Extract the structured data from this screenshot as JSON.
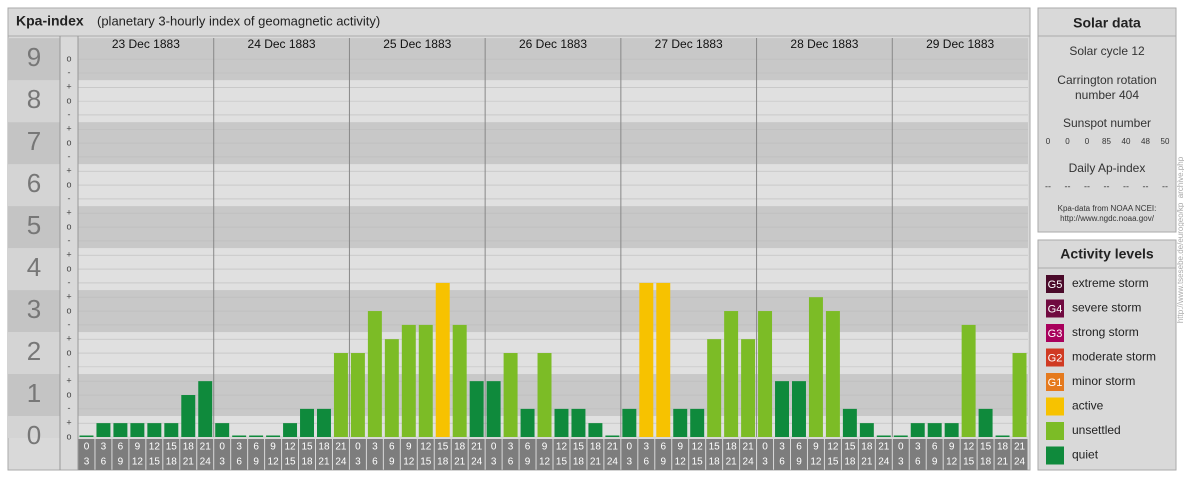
{
  "chart_data": {
    "type": "bar",
    "title": "Kpa-index",
    "subtitle": "(planetary 3-hourly index of geomagnetic activity)",
    "days": [
      "23 Dec 1883",
      "24 Dec 1883",
      "25 Dec 1883",
      "26 Dec 1883",
      "27 Dec 1883",
      "28 Dec 1883",
      "29 Dec 1883"
    ],
    "time_labels": [
      [
        "0",
        "3"
      ],
      [
        "3",
        "6"
      ],
      [
        "6",
        "9"
      ],
      [
        "9",
        "12"
      ],
      [
        "12",
        "15"
      ],
      [
        "15",
        "18"
      ],
      [
        "18",
        "21"
      ],
      [
        "21",
        "24"
      ]
    ],
    "values": [
      [
        0,
        0.33,
        0.33,
        0.33,
        0.33,
        0.33,
        1,
        1.33
      ],
      [
        0.33,
        0,
        0,
        0,
        0.33,
        0.67,
        0.67,
        2
      ],
      [
        2,
        3,
        2.33,
        2.67,
        2.67,
        3.67,
        2.67,
        1.33
      ],
      [
        1.33,
        2,
        0.67,
        2,
        0.67,
        0.67,
        0.33,
        0
      ],
      [
        0.67,
        3.67,
        3.67,
        0.67,
        0.67,
        2.33,
        3,
        2.33
      ],
      [
        3,
        1.33,
        1.33,
        3.33,
        3,
        0.67,
        0.33,
        0
      ],
      [
        0,
        0.33,
        0.33,
        0.33,
        2.67,
        0.67,
        0,
        2
      ]
    ],
    "colors": [
      [
        "#0f8a3c",
        "#0f8a3c",
        "#0f8a3c",
        "#0f8a3c",
        "#0f8a3c",
        "#0f8a3c",
        "#0f8a3c",
        "#0f8a3c"
      ],
      [
        "#0f8a3c",
        "#0f8a3c",
        "#0f8a3c",
        "#0f8a3c",
        "#0f8a3c",
        "#0f8a3c",
        "#0f8a3c",
        "#7cbc26"
      ],
      [
        "#7cbc26",
        "#7cbc26",
        "#7cbc26",
        "#7cbc26",
        "#7cbc26",
        "#f7c200",
        "#7cbc26",
        "#0f8a3c"
      ],
      [
        "#0f8a3c",
        "#7cbc26",
        "#0f8a3c",
        "#7cbc26",
        "#0f8a3c",
        "#0f8a3c",
        "#0f8a3c",
        "#0f8a3c"
      ],
      [
        "#0f8a3c",
        "#f7c200",
        "#f7c200",
        "#0f8a3c",
        "#0f8a3c",
        "#7cbc26",
        "#7cbc26",
        "#7cbc26"
      ],
      [
        "#7cbc26",
        "#0f8a3c",
        "#0f8a3c",
        "#7cbc26",
        "#7cbc26",
        "#0f8a3c",
        "#0f8a3c",
        "#0f8a3c"
      ],
      [
        "#0f8a3c",
        "#0f8a3c",
        "#0f8a3c",
        "#0f8a3c",
        "#7cbc26",
        "#0f8a3c",
        "#0f8a3c",
        "#7cbc26"
      ]
    ],
    "ylim": [
      0,
      9.17
    ],
    "yticks": [
      0,
      1,
      2,
      3,
      4,
      5,
      6,
      7,
      8,
      9
    ],
    "minor_yticks": [
      {
        "value": 0,
        "label": "o"
      },
      {
        "value": 0.33,
        "label": "+"
      },
      {
        "value": 0.67,
        "label": "-"
      },
      {
        "value": 1,
        "label": "o"
      },
      {
        "value": 1.33,
        "label": "+"
      },
      {
        "value": 1.67,
        "label": "-"
      },
      {
        "value": 2,
        "label": "o"
      },
      {
        "value": 2.33,
        "label": "+"
      },
      {
        "value": 2.67,
        "label": "-"
      },
      {
        "value": 3,
        "label": "o"
      },
      {
        "value": 3.33,
        "label": "+"
      },
      {
        "value": 3.67,
        "label": "-"
      },
      {
        "value": 4,
        "label": "o"
      },
      {
        "value": 4.33,
        "label": "+"
      },
      {
        "value": 4.67,
        "label": "-"
      },
      {
        "value": 5,
        "label": "o"
      },
      {
        "value": 5.33,
        "label": "+"
      },
      {
        "value": 5.67,
        "label": "-"
      },
      {
        "value": 6,
        "label": "o"
      },
      {
        "value": 6.33,
        "label": "+"
      },
      {
        "value": 6.67,
        "label": "-"
      },
      {
        "value": 7,
        "label": "o"
      },
      {
        "value": 7.33,
        "label": "+"
      },
      {
        "value": 7.67,
        "label": "-"
      },
      {
        "value": 8,
        "label": "o"
      },
      {
        "value": 8.33,
        "label": "+"
      },
      {
        "value": 8.67,
        "label": "-"
      },
      {
        "value": 9,
        "label": "o"
      }
    ],
    "grid": true
  },
  "solar_data": {
    "title": "Solar data",
    "cycle": "Solar cycle 12",
    "carrington": [
      "Carrington rotation",
      "number 404"
    ],
    "sunspot_title": "Sunspot number",
    "sunspots": [
      0,
      0,
      0,
      85,
      40,
      48,
      50
    ],
    "ap_title": "Daily Ap-index",
    "ap": [
      "--",
      "--",
      "--",
      "--",
      "--",
      "--",
      "--"
    ],
    "source": [
      "Kpa-data from NOAA NCEI:",
      "http://www.ngdc.noaa.gov/"
    ]
  },
  "activity_levels": {
    "title": "Activity levels",
    "items": [
      {
        "badge": "G5",
        "label": "extreme storm",
        "color": "#4a0a2a"
      },
      {
        "badge": "G4",
        "label": "severe storm",
        "color": "#700a40"
      },
      {
        "badge": "G3",
        "label": "strong storm",
        "color": "#a8005c"
      },
      {
        "badge": "G2",
        "label": "moderate storm",
        "color": "#d03a22"
      },
      {
        "badge": "G1",
        "label": "minor storm",
        "color": "#e57a1e"
      },
      {
        "badge": null,
        "label": "active",
        "color": "#f7c200"
      },
      {
        "badge": null,
        "label": "unsettled",
        "color": "#7cbc26"
      },
      {
        "badge": null,
        "label": "quiet",
        "color": "#0f8a3c"
      }
    ]
  },
  "credit": "http://www.tsesebe.de/eurogeo/kp_archive.php"
}
